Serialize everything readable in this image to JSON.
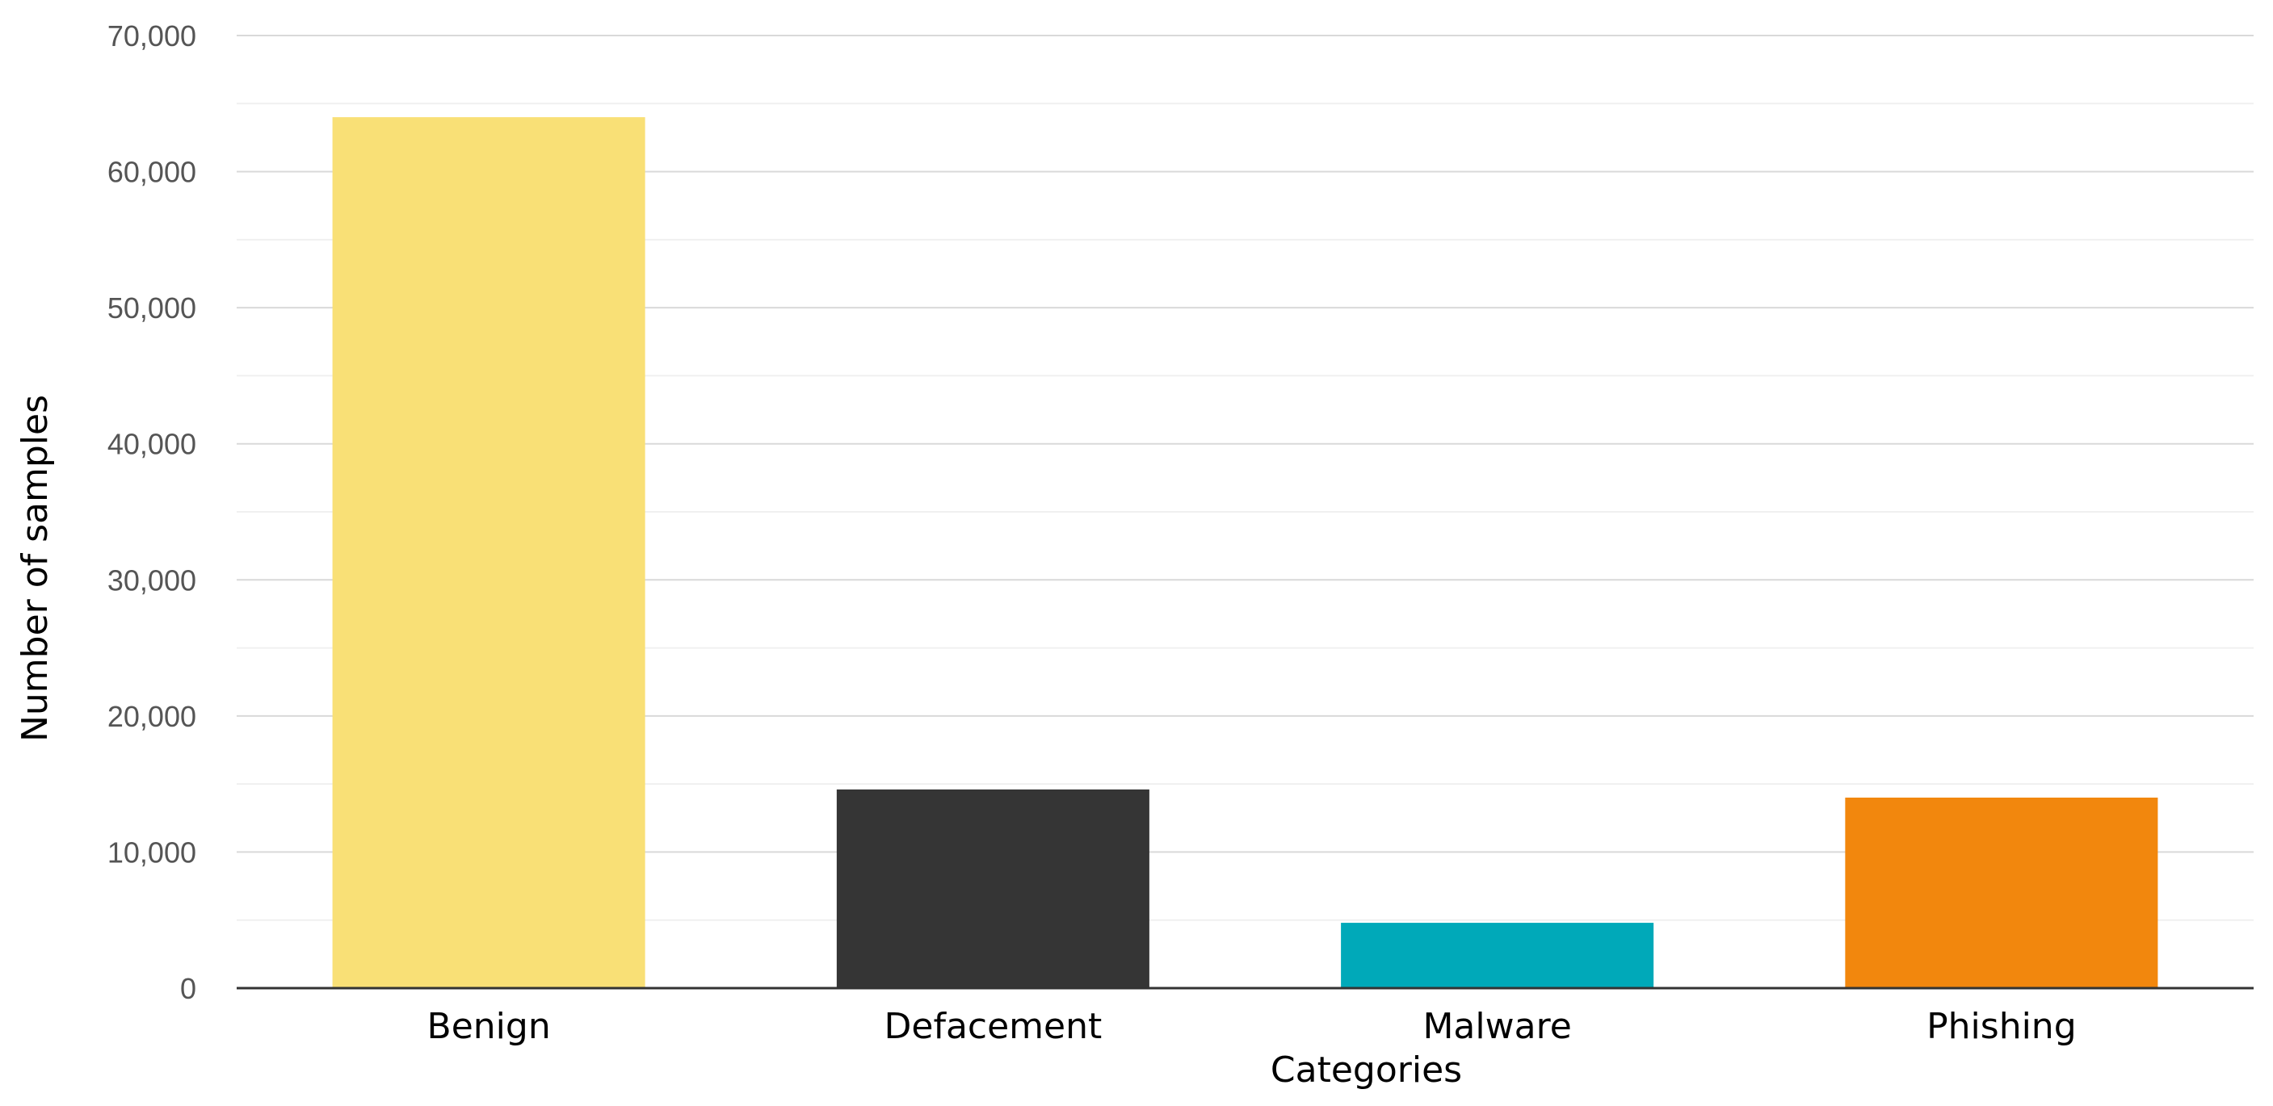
{
  "chart_data": {
    "type": "bar",
    "title": "",
    "xlabel": "Categories",
    "ylabel": "Number of samples",
    "categories": [
      "Benign",
      "Defacement",
      "Malware",
      "Phishing"
    ],
    "values": [
      64000,
      14600,
      4800,
      14000
    ],
    "colors": [
      "#f9e076",
      "#353535",
      "#00a9b9",
      "#f2870d"
    ],
    "ylim": [
      0,
      70000
    ],
    "yticks": [
      0,
      10000,
      20000,
      30000,
      40000,
      50000,
      60000,
      70000
    ],
    "ytick_labels": [
      "0",
      "10,000",
      "20,000",
      "30,000",
      "40,000",
      "50,000",
      "60,000",
      "70,000"
    ],
    "grid": true,
    "minor_grid": true,
    "legend": "none"
  }
}
